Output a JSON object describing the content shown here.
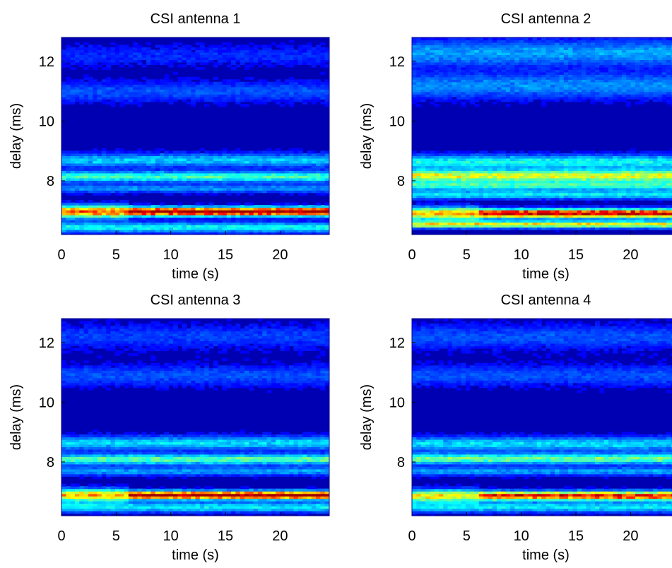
{
  "chart_data": [
    {
      "type": "heatmap",
      "title": "CSI antenna 1",
      "xlabel": "time (s)",
      "ylabel": "delay (ms)",
      "xlim": [
        0,
        24.5
      ],
      "ylim": [
        6.2,
        12.8
      ],
      "xticks": [
        0,
        5,
        10,
        15,
        20
      ],
      "yticks": [
        8,
        10,
        12
      ],
      "colormap": "jet",
      "bands": [
        {
          "delay": 6.45,
          "width": 0.12,
          "intensity": 0.3
        },
        {
          "delay": 6.98,
          "width": 0.14,
          "intensity": 0.7,
          "t_end": 6
        },
        {
          "delay": 6.98,
          "width": 0.1,
          "intensity": 0.95,
          "t_start": 6
        },
        {
          "delay": 7.75,
          "width": 0.1,
          "intensity": 0.18
        },
        {
          "delay": 8.15,
          "width": 0.12,
          "intensity": 0.36
        },
        {
          "delay": 8.7,
          "width": 0.16,
          "intensity": 0.24
        },
        {
          "delay": 11.0,
          "width": 0.25,
          "intensity": 0.12
        },
        {
          "delay": 12.2,
          "width": 0.25,
          "intensity": 0.08
        }
      ]
    },
    {
      "type": "heatmap",
      "title": "CSI antenna 2",
      "xlabel": "time (s)",
      "ylabel": "delay (ms)",
      "xlim": [
        0,
        24.5
      ],
      "ylim": [
        6.2,
        12.8
      ],
      "xticks": [
        0,
        5,
        10,
        15,
        20
      ],
      "yticks": [
        8,
        10,
        12
      ],
      "colormap": "jet",
      "bands": [
        {
          "delay": 6.55,
          "width": 0.08,
          "intensity": 0.55
        },
        {
          "delay": 6.92,
          "width": 0.14,
          "intensity": 0.62,
          "t_end": 6
        },
        {
          "delay": 6.92,
          "width": 0.1,
          "intensity": 0.88,
          "t_start": 6
        },
        {
          "delay": 7.55,
          "width": 0.1,
          "intensity": 0.28
        },
        {
          "delay": 7.85,
          "width": 0.1,
          "intensity": 0.32
        },
        {
          "delay": 8.18,
          "width": 0.14,
          "intensity": 0.52
        },
        {
          "delay": 8.65,
          "width": 0.16,
          "intensity": 0.3
        },
        {
          "delay": 11.2,
          "width": 0.3,
          "intensity": 0.18
        },
        {
          "delay": 12.3,
          "width": 0.3,
          "intensity": 0.2
        }
      ]
    },
    {
      "type": "heatmap",
      "title": "CSI antenna 3",
      "xlabel": "time (s)",
      "ylabel": "delay (ms)",
      "xlim": [
        0,
        24.5
      ],
      "ylim": [
        6.2,
        12.8
      ],
      "xticks": [
        0,
        5,
        10,
        15,
        20
      ],
      "yticks": [
        8,
        10,
        12
      ],
      "colormap": "jet",
      "bands": [
        {
          "delay": 6.5,
          "width": 0.12,
          "intensity": 0.28
        },
        {
          "delay": 6.9,
          "width": 0.14,
          "intensity": 0.6,
          "t_end": 6
        },
        {
          "delay": 6.9,
          "width": 0.09,
          "intensity": 0.95,
          "t_start": 6
        },
        {
          "delay": 7.7,
          "width": 0.1,
          "intensity": 0.2
        },
        {
          "delay": 8.1,
          "width": 0.12,
          "intensity": 0.38
        },
        {
          "delay": 8.65,
          "width": 0.16,
          "intensity": 0.26
        },
        {
          "delay": 10.9,
          "width": 0.25,
          "intensity": 0.12
        },
        {
          "delay": 12.2,
          "width": 0.3,
          "intensity": 0.1
        }
      ]
    },
    {
      "type": "heatmap",
      "title": "CSI antenna 4",
      "xlabel": "time (s)",
      "ylabel": "delay (ms)",
      "xlim": [
        0,
        24.5
      ],
      "ylim": [
        6.2,
        12.8
      ],
      "xticks": [
        0,
        5,
        10,
        15,
        20
      ],
      "yticks": [
        8,
        10,
        12
      ],
      "colormap": "jet",
      "bands": [
        {
          "delay": 6.5,
          "width": 0.12,
          "intensity": 0.28
        },
        {
          "delay": 6.88,
          "width": 0.14,
          "intensity": 0.55,
          "t_end": 6
        },
        {
          "delay": 6.88,
          "width": 0.1,
          "intensity": 0.8,
          "t_start": 6
        },
        {
          "delay": 7.7,
          "width": 0.1,
          "intensity": 0.2
        },
        {
          "delay": 8.12,
          "width": 0.12,
          "intensity": 0.4
        },
        {
          "delay": 8.62,
          "width": 0.16,
          "intensity": 0.26
        },
        {
          "delay": 10.9,
          "width": 0.25,
          "intensity": 0.12
        },
        {
          "delay": 12.2,
          "width": 0.3,
          "intensity": 0.12
        }
      ]
    }
  ]
}
